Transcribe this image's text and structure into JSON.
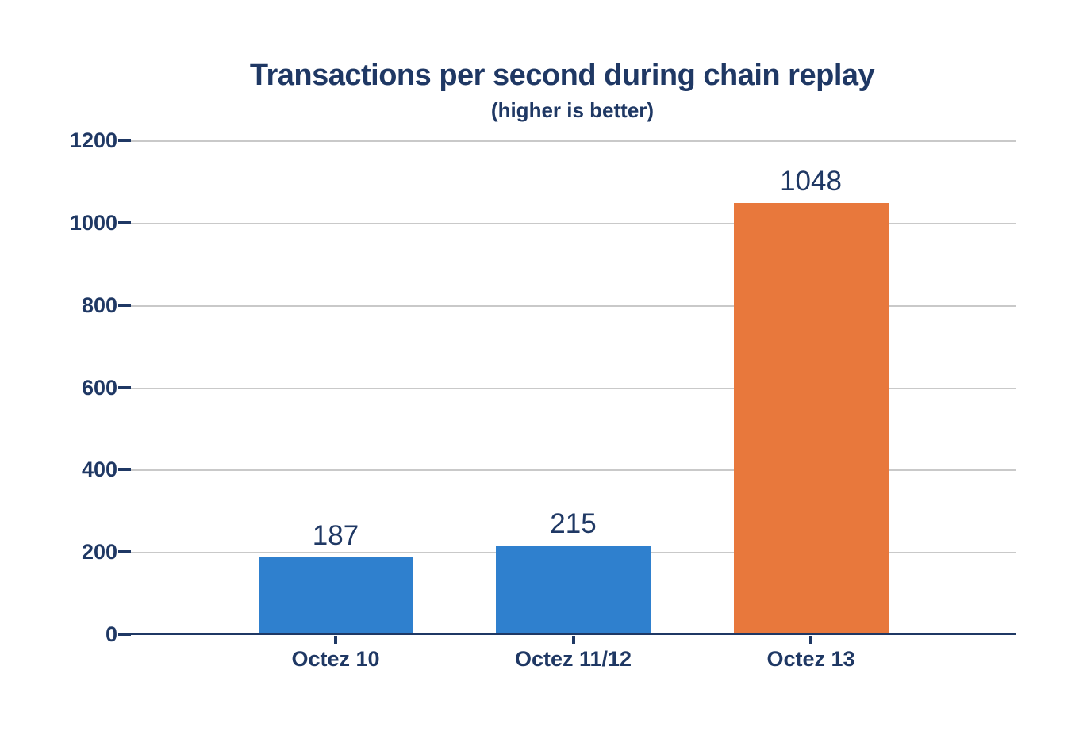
{
  "chart_data": {
    "type": "bar",
    "title": "Transactions per second during chain replay",
    "subtitle": "(higher is better)",
    "categories": [
      "Octez 10",
      "Octez 11/12",
      "Octez 13"
    ],
    "values": [
      187,
      215,
      1048
    ],
    "data_labels": [
      "187",
      "215",
      "1048"
    ],
    "series": [
      {
        "name": "Transactions per second",
        "values": [
          187,
          215,
          1048
        ]
      }
    ],
    "xlabel": "",
    "ylabel": "",
    "ylim": [
      0,
      1200
    ],
    "yticks": [
      0,
      200,
      400,
      600,
      800,
      1000,
      1200
    ],
    "ytick_labels": [
      "0",
      "200",
      "400",
      "600",
      "800",
      "1000",
      "1200"
    ],
    "grid": "horizontal",
    "legend": "none",
    "bar_colors": [
      "#2F80CE",
      "#2F80CE",
      "#E8783C"
    ],
    "colors": {
      "title_text": "#1F3864",
      "subtitle_text": "#1F3864",
      "tick_label_text": "#1F3864",
      "value_label_text": "#1F3864",
      "gridline": "#C9C9C9",
      "axis_line": "#1F3864",
      "blue_series": "#2F80CE",
      "orange_highlight": "#E8783C",
      "plot_background": "#FFFFFF",
      "page_background": "#FFFFFF"
    }
  }
}
